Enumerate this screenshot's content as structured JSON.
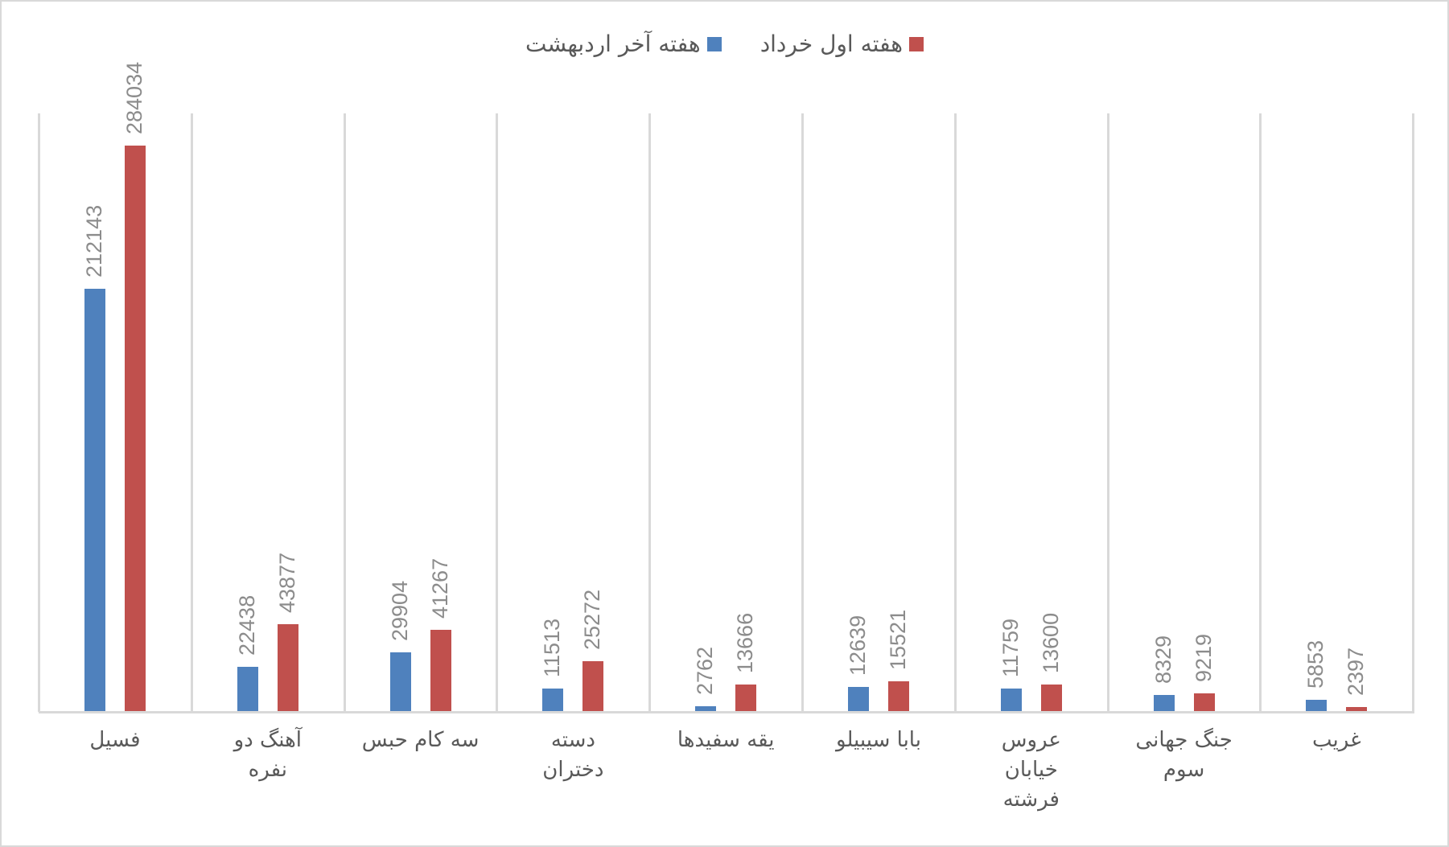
{
  "chart_data": {
    "type": "bar",
    "title": "",
    "xlabel": "",
    "ylabel": "",
    "ylim": [
      0,
      300000
    ],
    "grid": "vertical category separators",
    "legend_position": "top",
    "categories": [
      "فسیل",
      "آهنگ دو نفره",
      "سه کام حبس",
      "دسته دختران",
      "یقه سفیدها",
      "بابا سیبیلو",
      "عروس خیابان فرشته",
      "جنگ جهانی سوم",
      "غریب"
    ],
    "category_lines": [
      "فسیل",
      "آهنگ دو\nنفره",
      "سه کام حبس",
      "دسته\nدختران",
      "یقه سفیدها",
      "بابا سیبیلو",
      "عروس\nخیابان\nفرشته",
      "جنگ جهانی\nسوم",
      "غریب"
    ],
    "series": [
      {
        "name": "هفته آخر اردبهشت",
        "color": "#4f81bd",
        "values": [
          212143,
          22438,
          29904,
          11513,
          2762,
          12639,
          11759,
          8329,
          5853
        ]
      },
      {
        "name": "هفته اول خرداد",
        "color": "#c0504d",
        "values": [
          284034,
          43877,
          41267,
          25272,
          13666,
          15521,
          13600,
          9219,
          2397
        ]
      }
    ]
  },
  "legend": {
    "items": [
      {
        "label": "هفته اول خرداد",
        "color": "#c0504d"
      },
      {
        "label": "هفته آخر اردبهشت",
        "color": "#4f81bd"
      }
    ]
  }
}
